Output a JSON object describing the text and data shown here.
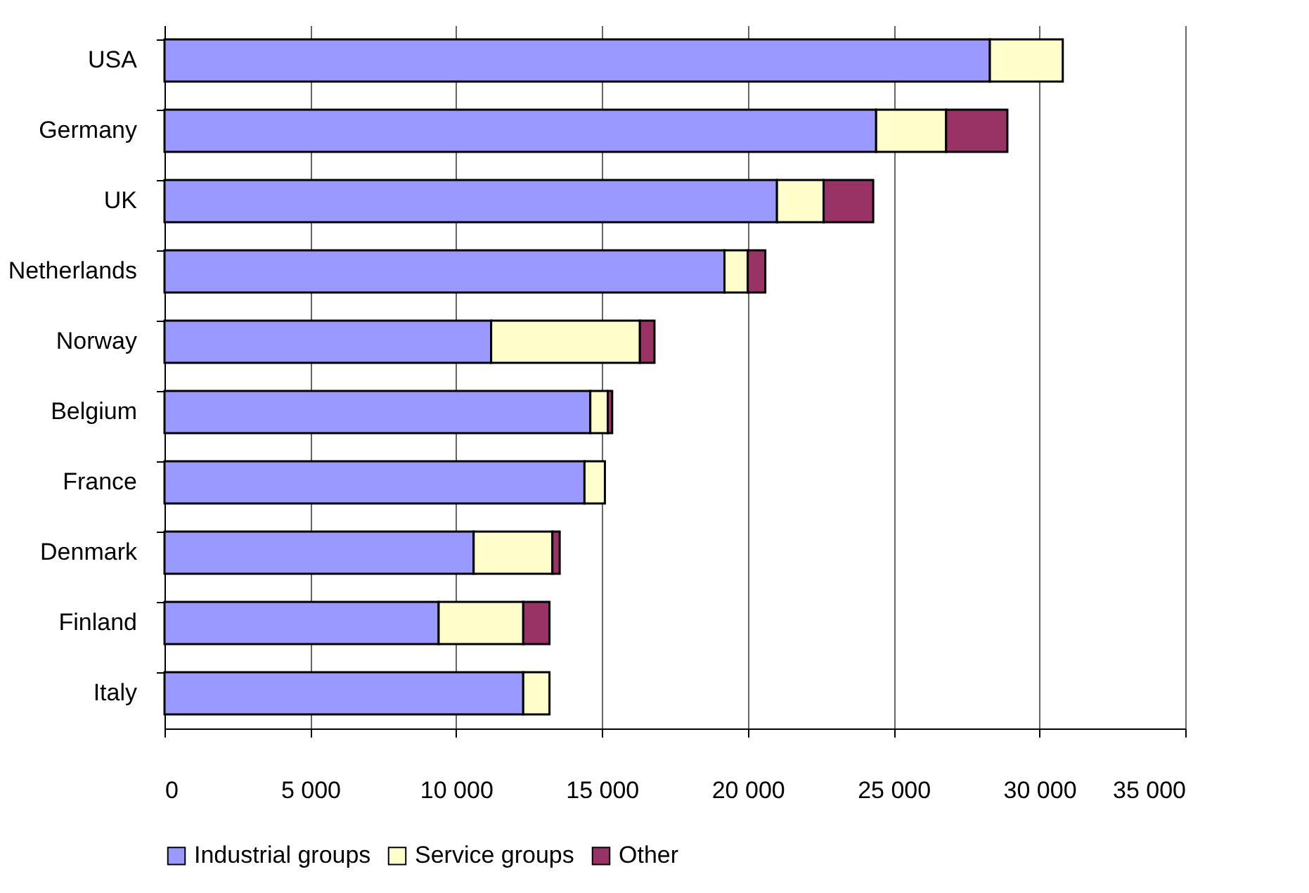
{
  "chart_data": {
    "type": "bar",
    "orientation": "horizontal",
    "stacked": true,
    "categories": [
      "USA",
      "Germany",
      "UK",
      "Netherlands",
      "Norway",
      "Belgium",
      "France",
      "Denmark",
      "Finland",
      "Italy"
    ],
    "series": [
      {
        "name": "Industrial groups",
        "color": "#9999ff",
        "values": [
          28300,
          24400,
          21000,
          19200,
          11200,
          14600,
          14400,
          10600,
          9400,
          12300
        ]
      },
      {
        "name": "Service groups",
        "color": "#ffffcc",
        "values": [
          2500,
          2400,
          1600,
          800,
          5100,
          600,
          700,
          2700,
          2900,
          900
        ]
      },
      {
        "name": "Other",
        "color": "#993366",
        "values": [
          null,
          2100,
          1700,
          600,
          500,
          150,
          null,
          250,
          900,
          null
        ]
      }
    ],
    "xlim": [
      0,
      35000
    ],
    "xticks": [
      {
        "value": 0,
        "label": "0"
      },
      {
        "value": 5000,
        "label": "5 000"
      },
      {
        "value": 10000,
        "label": "10 000"
      },
      {
        "value": 15000,
        "label": "15 000"
      },
      {
        "value": 20000,
        "label": "20 000"
      },
      {
        "value": 25000,
        "label": "25 000"
      },
      {
        "value": 30000,
        "label": "30 000"
      },
      {
        "value": 35000,
        "label": "35 000"
      }
    ],
    "grid": "x",
    "legend": "bottom"
  }
}
